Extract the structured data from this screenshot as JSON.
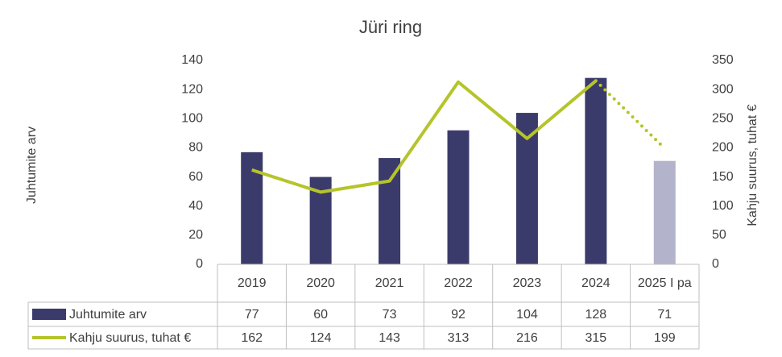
{
  "chart_data": {
    "type": "bar-line",
    "title": "Jüri ring",
    "categories": [
      "2019",
      "2020",
      "2021",
      "2022",
      "2023",
      "2024",
      "2025 I pa"
    ],
    "series": [
      {
        "name": "Juhtumite arv",
        "type": "bar",
        "color": "#3b3b6b",
        "colors": [
          "#3b3b6b",
          "#3b3b6b",
          "#3b3b6b",
          "#3b3b6b",
          "#3b3b6b",
          "#3b3b6b",
          "#b3b3cc"
        ],
        "values": [
          77,
          60,
          73,
          92,
          104,
          128,
          71
        ]
      },
      {
        "name": "Kahju suurus, tuhat €",
        "type": "line",
        "axis": "y2",
        "color": "#b5c42a",
        "dotted_last_segment": true,
        "values": [
          162,
          124,
          143,
          313,
          216,
          315,
          199
        ]
      }
    ],
    "y_label": "Juhtumite arv",
    "y2_label": "Kahju suurus, tuhat €",
    "ylim": [
      0,
      140
    ],
    "yticks": [
      0,
      20,
      40,
      60,
      80,
      100,
      120,
      140
    ],
    "y2lim": [
      0,
      350
    ],
    "y2ticks": [
      0,
      50,
      100,
      150,
      200,
      250,
      300,
      350
    ],
    "data_table": true
  }
}
